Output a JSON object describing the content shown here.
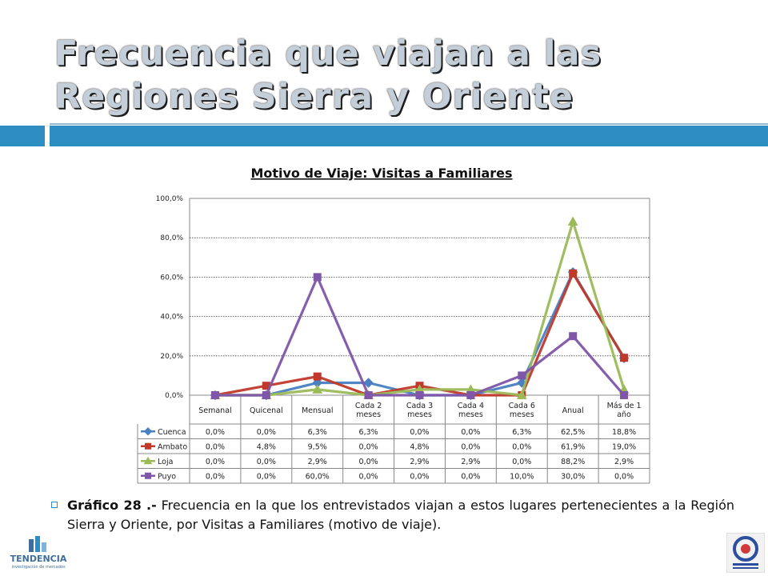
{
  "slide": {
    "title": "Frecuencia que viajan a las Regiones Sierra y Oriente",
    "caption_bold": "Gráfico 28 .-",
    "caption_text": " Frecuencia en la que los entrevistados viajan a estos lugares pertenecientes a la Región Sierra y Oriente, por Visitas a Familiares (motivo de viaje).",
    "logo_left_text": "TENDENCIA",
    "logo_left_subtext": "investigación de mercados",
    "colors": {
      "accent_bar": "#2f8ec1"
    }
  },
  "chart_data": {
    "type": "line",
    "title": "Motivo de Viaje:  Visitas a Familiares",
    "categories": [
      "Semanal",
      "Quicenal",
      "Mensual",
      "Cada 2 meses",
      "Cada 3 meses",
      "Cada 4 meses",
      "Cada 6 meses",
      "Anual",
      "Más de 1 año"
    ],
    "y_ticks": [
      "0,0%",
      "20,0%",
      "40,0%",
      "60,0%",
      "80,0%",
      "100,0%"
    ],
    "ylim": [
      0,
      100
    ],
    "grid": true,
    "legend": "data-table",
    "series": [
      {
        "name": "Cuenca",
        "color": "#4a7fc1",
        "marker": "diamond",
        "values": [
          0,
          0,
          6.3,
          6.3,
          0,
          0,
          6.3,
          62.5,
          18.8
        ],
        "labels": [
          "0,0%",
          "0,0%",
          "6,3%",
          "6,3%",
          "0,0%",
          "0,0%",
          "6,3%",
          "62,5%",
          "18,8%"
        ]
      },
      {
        "name": "Ambato",
        "color": "#c0392b",
        "marker": "square",
        "values": [
          0,
          4.8,
          9.5,
          0,
          4.8,
          0,
          0,
          61.9,
          19.0
        ],
        "labels": [
          "0,0%",
          "4,8%",
          "9,5%",
          "0,0%",
          "4,8%",
          "0,0%",
          "0,0%",
          "61,9%",
          "19,0%"
        ]
      },
      {
        "name": "Loja",
        "color": "#9bbb59",
        "marker": "triangle",
        "values": [
          0,
          0,
          2.9,
          0,
          2.9,
          2.9,
          0,
          88.2,
          2.9
        ],
        "labels": [
          "0,0%",
          "0,0%",
          "2,9%",
          "0,0%",
          "2,9%",
          "2,9%",
          "0,0%",
          "88,2%",
          "2,9%"
        ]
      },
      {
        "name": "Puyo",
        "color": "#7f56a8",
        "marker": "square",
        "values": [
          0,
          0,
          60.0,
          0,
          0,
          0,
          10.0,
          30.0,
          0
        ],
        "labels": [
          "0,0%",
          "0,0%",
          "60,0%",
          "0,0%",
          "0,0%",
          "0,0%",
          "10,0%",
          "30,0%",
          "0,0%"
        ]
      }
    ]
  }
}
